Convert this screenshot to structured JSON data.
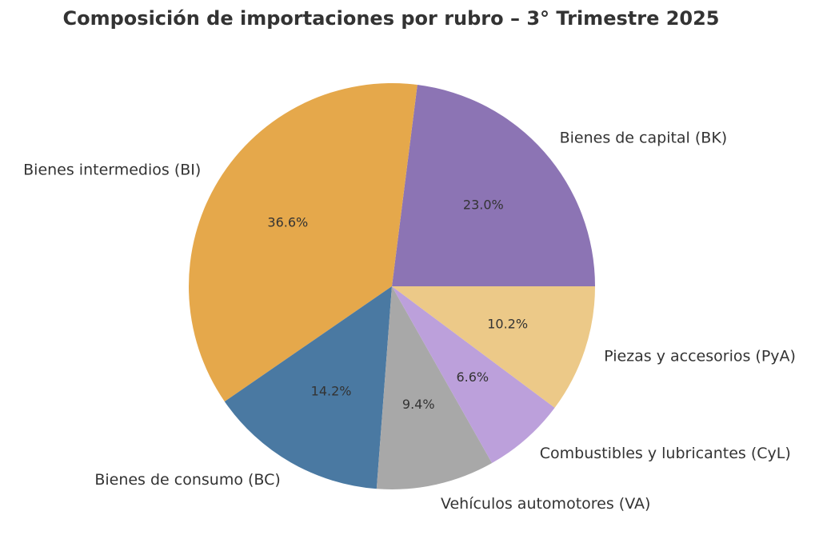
{
  "chart_data": {
    "type": "pie",
    "title": "Composición de importaciones por rubro – 3° Trimestre 2025",
    "start_angle_deg": 0,
    "direction": "counterclockwise",
    "slices": [
      {
        "label": "Bienes de capital (BK)",
        "value": 23.0,
        "pct_label": "23.0%",
        "color": "#8c74b4"
      },
      {
        "label": "Bienes intermedios (BI)",
        "value": 36.6,
        "pct_label": "36.6%",
        "color": "#e5a84b"
      },
      {
        "label": "Bienes de consumo (BC)",
        "value": 14.2,
        "pct_label": "14.2%",
        "color": "#4a79a2"
      },
      {
        "label": "Vehículos automotores (VA)",
        "value": 9.4,
        "pct_label": "9.4%",
        "color": "#a8a8a8"
      },
      {
        "label": "Combustibles y lubricantes (CyL)",
        "value": 6.6,
        "pct_label": "6.6%",
        "color": "#bca0db"
      },
      {
        "label": "Piezas y accesorios (PyA)",
        "value": 10.2,
        "pct_label": "10.2%",
        "color": "#ecc988"
      }
    ]
  }
}
